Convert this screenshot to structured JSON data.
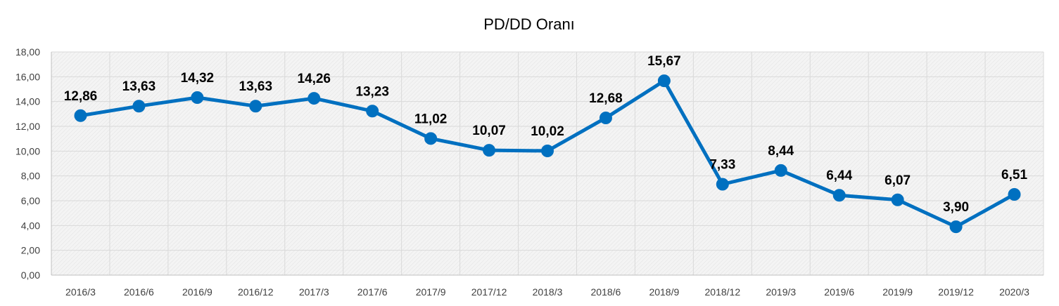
{
  "chart_data": {
    "type": "line",
    "title": "PD/DD Oranı",
    "xlabel": "",
    "ylabel": "",
    "categories": [
      "2016/3",
      "2016/6",
      "2016/9",
      "2016/12",
      "2017/3",
      "2017/6",
      "2017/9",
      "2017/12",
      "2018/3",
      "2018/6",
      "2018/9",
      "2018/12",
      "2019/3",
      "2019/6",
      "2019/9",
      "2019/12",
      "2020/3"
    ],
    "series": [
      {
        "values": [
          12.86,
          13.63,
          14.32,
          13.63,
          14.26,
          13.23,
          11.02,
          10.07,
          10.02,
          12.68,
          15.67,
          7.33,
          8.44,
          6.44,
          6.07,
          3.9,
          6.51
        ],
        "labels": [
          "12,86",
          "13,63",
          "14,32",
          "13,63",
          "14,26",
          "13,23",
          "11,02",
          "10,07",
          "10,02",
          "12,68",
          "15,67",
          "7,33",
          "8,44",
          "6,44",
          "6,07",
          "3,90",
          "6,51"
        ]
      }
    ],
    "yticks": [
      "0,00",
      "2,00",
      "4,00",
      "6,00",
      "8,00",
      "10,00",
      "12,00",
      "14,00",
      "16,00",
      "18,00"
    ],
    "ylim": [
      0,
      18
    ],
    "grid": true,
    "legend": "none",
    "colors": {
      "line": "#0070c0",
      "grid": "#d9d9d9",
      "plot_bg": "#f2f2f2",
      "axis": "#bfbfbf"
    }
  }
}
